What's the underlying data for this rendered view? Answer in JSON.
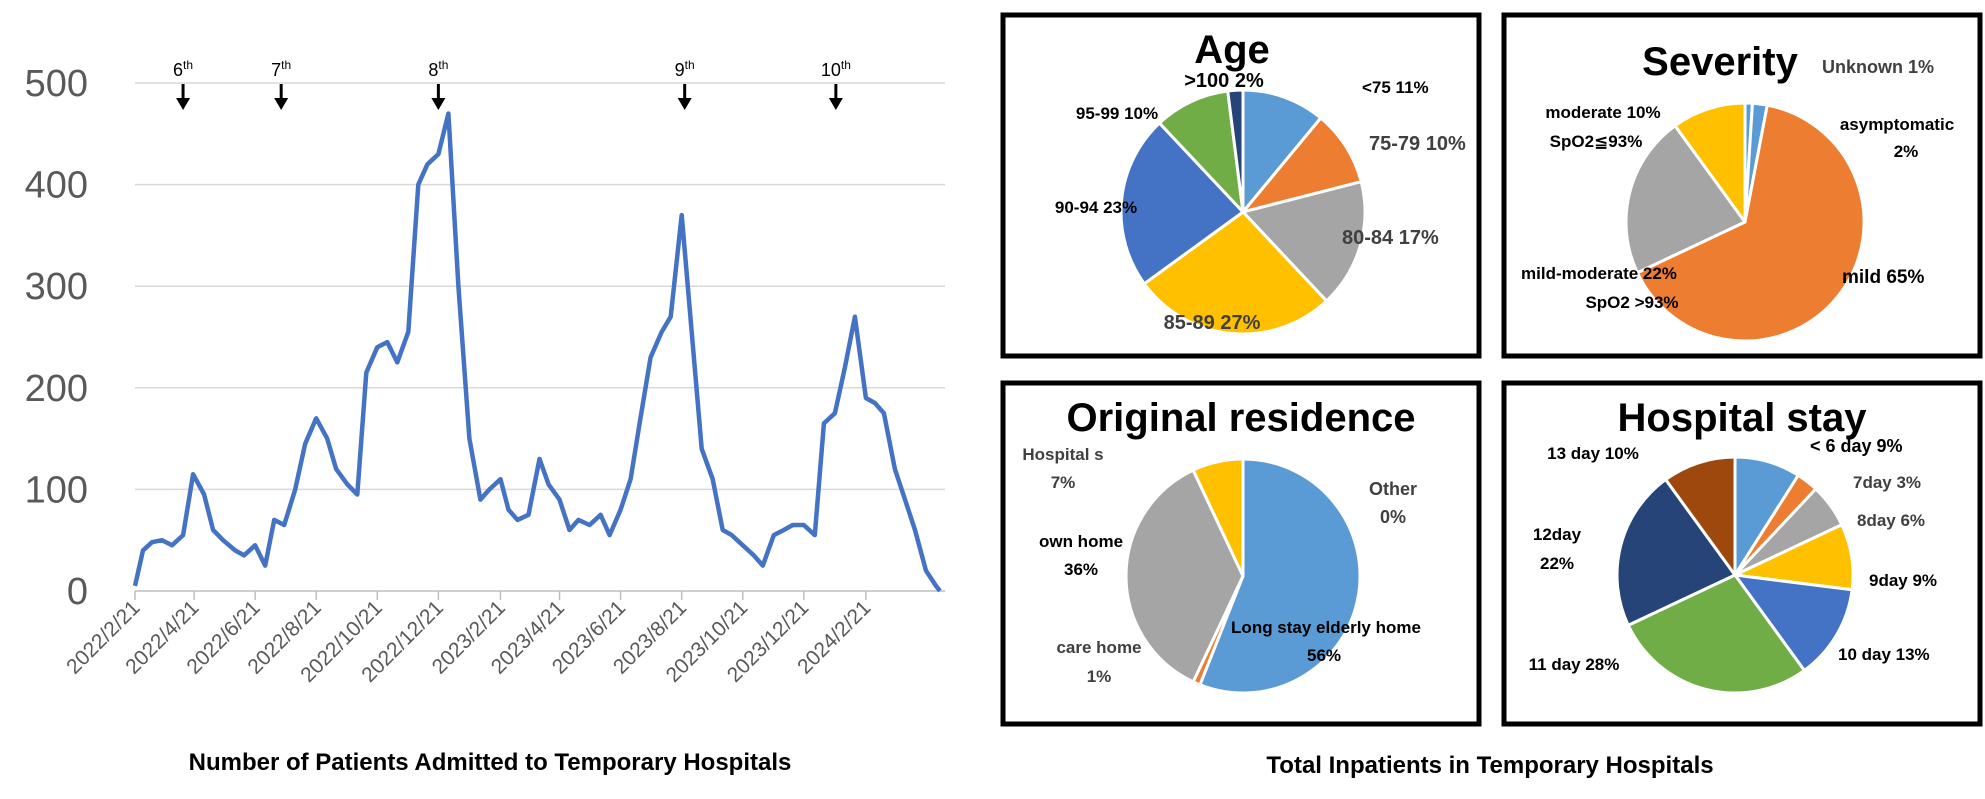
{
  "left_chart": {
    "caption": "Number of Patients Admitted to Temporary Hospitals",
    "y_ticks": [
      0,
      100,
      200,
      300,
      400,
      500
    ],
    "x_ticks": [
      "2022/2/21",
      "2022/4/21",
      "2022/6/21",
      "2022/8/21",
      "2022/10/21",
      "2022/12/21",
      "2023/2/21",
      "2023/4/21",
      "2023/6/21",
      "2023/8/21",
      "2023/10/21",
      "2023/12/21",
      "2024/2/21"
    ],
    "waves": [
      {
        "num": "6",
        "sup": "th",
        "date": "2022-04-10"
      },
      {
        "num": "7",
        "sup": "th",
        "date": "2022-07-17"
      },
      {
        "num": "8",
        "sup": "th",
        "date": "2022-12-21"
      },
      {
        "num": "9",
        "sup": "th",
        "date": "2023-08-24"
      },
      {
        "num": "10",
        "sup": "th",
        "date": "2024-01-22"
      }
    ]
  },
  "right_caption": "Total Inpatients in Temporary Hospitals",
  "colors": {
    "line": "#4472c4",
    "grid": "#d9d9d9",
    "tick_text": "#595959",
    "light_blue": "#5b9bd5",
    "orange": "#ed7d31",
    "gray": "#a5a5a5",
    "yellow": "#ffc000",
    "blue": "#4472c4",
    "green": "#70ad47",
    "dark_blue": "#264478",
    "brown": "#9e480e"
  },
  "chart_data": [
    {
      "type": "line",
      "title": "",
      "xlabel": "Number of Patients Admitted to Temporary Hospitals",
      "ylabel": "",
      "ylim": [
        0,
        500
      ],
      "xlim": [
        "2022-02-21",
        "2024-05-10"
      ],
      "grid": true,
      "x": [
        "2022-02-21",
        "2022-03-01",
        "2022-03-10",
        "2022-03-20",
        "2022-03-30",
        "2022-04-10",
        "2022-04-20",
        "2022-05-01",
        "2022-05-10",
        "2022-05-20",
        "2022-06-01",
        "2022-06-10",
        "2022-06-21",
        "2022-07-01",
        "2022-07-10",
        "2022-07-20",
        "2022-07-31",
        "2022-08-10",
        "2022-08-21",
        "2022-09-01",
        "2022-09-10",
        "2022-09-21",
        "2022-10-01",
        "2022-10-10",
        "2022-10-21",
        "2022-10-31",
        "2022-11-10",
        "2022-11-21",
        "2022-12-01",
        "2022-12-10",
        "2022-12-21",
        "2022-12-31",
        "2023-01-10",
        "2023-01-21",
        "2023-02-01",
        "2023-02-10",
        "2023-02-21",
        "2023-03-01",
        "2023-03-10",
        "2023-03-21",
        "2023-04-01",
        "2023-04-10",
        "2023-04-21",
        "2023-05-01",
        "2023-05-10",
        "2023-05-21",
        "2023-06-01",
        "2023-06-10",
        "2023-06-21",
        "2023-07-01",
        "2023-07-10",
        "2023-07-21",
        "2023-08-01",
        "2023-08-10",
        "2023-08-21",
        "2023-08-31",
        "2023-09-10",
        "2023-09-21",
        "2023-10-01",
        "2023-10-10",
        "2023-10-21",
        "2023-11-01",
        "2023-11-10",
        "2023-11-21",
        "2023-12-01",
        "2023-12-10",
        "2023-12-21",
        "2024-01-01",
        "2024-01-10",
        "2024-01-21",
        "2024-01-31",
        "2024-02-10",
        "2024-02-21",
        "2024-03-01",
        "2024-03-10",
        "2024-03-21",
        "2024-03-31",
        "2024-04-10",
        "2024-04-21",
        "2024-05-01",
        "2024-05-05"
      ],
      "values": [
        5,
        40,
        48,
        50,
        45,
        55,
        115,
        95,
        60,
        50,
        40,
        35,
        45,
        25,
        70,
        65,
        100,
        145,
        170,
        150,
        120,
        105,
        95,
        215,
        240,
        245,
        225,
        255,
        400,
        420,
        430,
        470,
        300,
        150,
        90,
        100,
        110,
        80,
        70,
        75,
        130,
        105,
        90,
        60,
        70,
        65,
        75,
        55,
        80,
        110,
        165,
        230,
        255,
        270,
        370,
        255,
        140,
        110,
        60,
        55,
        45,
        35,
        25,
        55,
        60,
        65,
        65,
        55,
        165,
        175,
        220,
        270,
        190,
        185,
        175,
        120,
        90,
        60,
        20,
        5,
        0
      ],
      "annotations": [
        "6th",
        "7th",
        "8th",
        "9th",
        "10th"
      ]
    },
    {
      "type": "pie",
      "title": "Age",
      "labels": [
        "<75",
        "75-79",
        "80-84",
        "85-89",
        "90-94",
        "95-99",
        ">100"
      ],
      "values": [
        11,
        10,
        17,
        27,
        23,
        10,
        2
      ],
      "label_texts": [
        "<75 11%",
        "75-79 10%",
        "80-84  17%",
        "85-89 27%",
        "90-94 23%",
        "95-99 10%",
        ">100 2%"
      ]
    },
    {
      "type": "pie",
      "title": "Severity",
      "labels": [
        "Unknown",
        "asymptomatic",
        "mild",
        "mild-moderate SpO2 >93%",
        "moderate SpO2≦93%"
      ],
      "values": [
        1,
        2,
        65,
        22,
        10
      ],
      "label_texts": [
        "Unknown 1%",
        "asymptomatic 2%",
        "mild 65%",
        "mild-moderate  22% SpO2 >93%",
        "moderate 10% SpO2≦93%"
      ]
    },
    {
      "type": "pie",
      "title": "Original residence",
      "labels": [
        "Other",
        "Long stay elderly home",
        "care home",
        "own home",
        "Hospitals"
      ],
      "values": [
        0,
        56,
        1,
        36,
        7
      ],
      "label_texts": [
        "Other 0%",
        "Long stay elderly home 56%",
        "care home 1%",
        "own home 36%",
        "Hospital s 7%"
      ]
    },
    {
      "type": "pie",
      "title": "Hospital stay",
      "labels": [
        "< 6 day",
        "7day",
        "8day",
        "9day",
        "10 day",
        "11 day",
        "12day",
        "13 day"
      ],
      "values": [
        9,
        3,
        6,
        9,
        13,
        28,
        22,
        10
      ],
      "label_texts": [
        "< 6 day 9%",
        "7day 3%",
        "8day 6%",
        "9day 9%",
        "10 day 13%",
        "11 day 28%",
        "12day 22%",
        "13 day 10%"
      ]
    }
  ]
}
